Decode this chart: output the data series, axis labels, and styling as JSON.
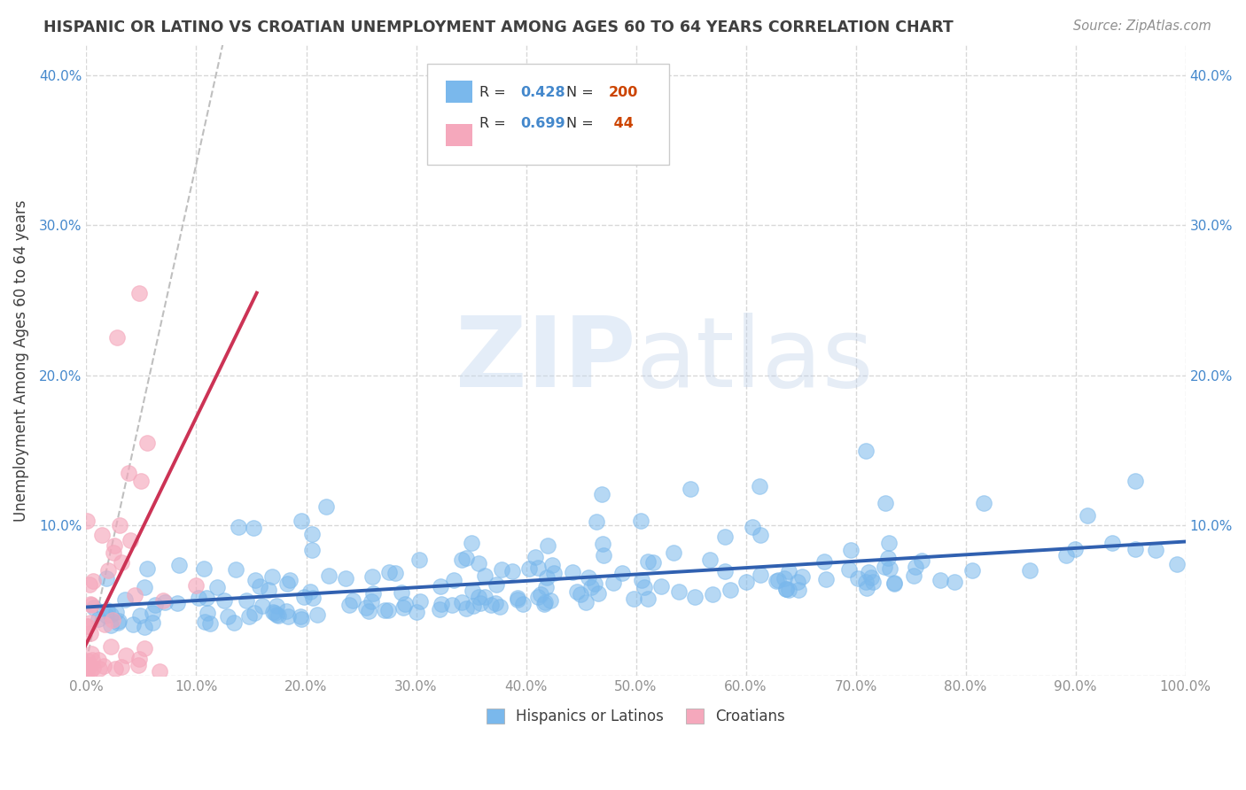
{
  "title": "HISPANIC OR LATINO VS CROATIAN UNEMPLOYMENT AMONG AGES 60 TO 64 YEARS CORRELATION CHART",
  "source": "Source: ZipAtlas.com",
  "ylabel": "Unemployment Among Ages 60 to 64 years",
  "legend_label_1": "Hispanics or Latinos",
  "legend_label_2": "Croatians",
  "R1": 0.428,
  "N1": 200,
  "R2": 0.699,
  "N2": 44,
  "color_blue": "#7ab8ec",
  "color_pink": "#f5a8bc",
  "color_blue_line": "#3060b0",
  "color_pink_line": "#cc3355",
  "color_pink_dash": "#d08090",
  "xlim": [
    0,
    1.0
  ],
  "ylim": [
    0,
    0.42
  ],
  "xticks": [
    0.0,
    0.1,
    0.2,
    0.3,
    0.4,
    0.5,
    0.6,
    0.7,
    0.8,
    0.9,
    1.0
  ],
  "yticks": [
    0.0,
    0.1,
    0.2,
    0.3,
    0.4
  ],
  "ytick_labels": [
    "",
    "10.0%",
    "20.0%",
    "30.0%",
    "40.0%"
  ],
  "xtick_labels": [
    "0.0%",
    "10.0%",
    "20.0%",
    "30.0%",
    "40.0%",
    "50.0%",
    "60.0%",
    "70.0%",
    "80.0%",
    "90.0%",
    "100.0%"
  ],
  "watermark_zip": "ZIP",
  "watermark_atlas": "atlas",
  "background_color": "#ffffff",
  "title_color": "#404040",
  "axis_color": "#909090",
  "grid_color": "#d8d8d8",
  "tick_color": "#4488cc",
  "legend_R_color": "#4488cc",
  "legend_N_color": "#cc4400"
}
